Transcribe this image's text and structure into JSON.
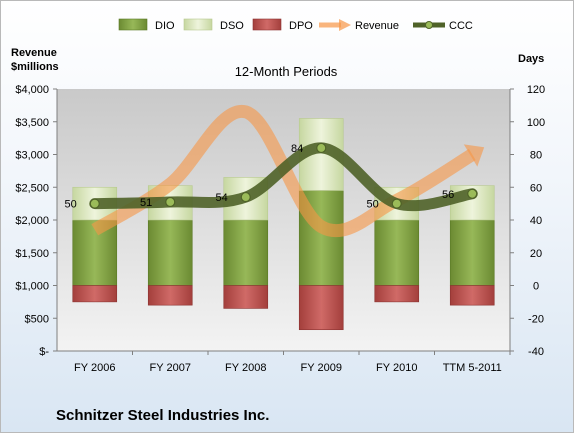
{
  "chart_data": {
    "type": "bar",
    "title": "12-Month Periods",
    "footer": "Schnitzer Steel Industries Inc.",
    "ylabel_left": [
      "Revenue",
      "$millions"
    ],
    "ylabel_right": "Days",
    "categories": [
      "FY 2006",
      "FY 2007",
      "FY 2008",
      "FY 2009",
      "FY 2010",
      "TTM 5-2011"
    ],
    "left_axis": {
      "min": 0,
      "max": 4000,
      "step": 500,
      "ticks": [
        "$-",
        "$500",
        "$1,000",
        "$1,500",
        "$2,000",
        "$2,500",
        "$3,000",
        "$3,500",
        "$4,000"
      ]
    },
    "right_axis": {
      "min": -40,
      "max": 120,
      "step": 20,
      "ticks": [
        "-40",
        "-20",
        "0",
        "20",
        "40",
        "60",
        "80",
        "100",
        "120"
      ]
    },
    "series": [
      {
        "name": "DIO",
        "kind": "stacked-bar",
        "axis": "right",
        "color": "#76933c",
        "values": [
          40,
          40,
          40,
          58,
          40,
          40
        ]
      },
      {
        "name": "DSO",
        "kind": "stacked-bar",
        "axis": "right",
        "color": "#d7e4bc",
        "values": [
          20,
          21,
          26,
          44,
          20,
          21
        ]
      },
      {
        "name": "DPO",
        "kind": "stacked-bar-negative",
        "axis": "right",
        "color": "#c0504d",
        "values": [
          -10,
          -12,
          -14,
          -27,
          -10,
          -12
        ]
      },
      {
        "name": "Revenue",
        "kind": "line",
        "axis": "left",
        "color": "#f79646",
        "values": [
          1850,
          2550,
          3650,
          1900,
          2300,
          3000
        ]
      },
      {
        "name": "CCC",
        "kind": "line-markers",
        "axis": "right",
        "color": "#4f6228",
        "values": [
          50,
          51,
          54,
          84,
          50,
          56
        ]
      }
    ],
    "ccc_labels": [
      "50",
      "51",
      "54",
      "84",
      "50",
      "56"
    ],
    "legend_position": "top",
    "grid": false
  }
}
